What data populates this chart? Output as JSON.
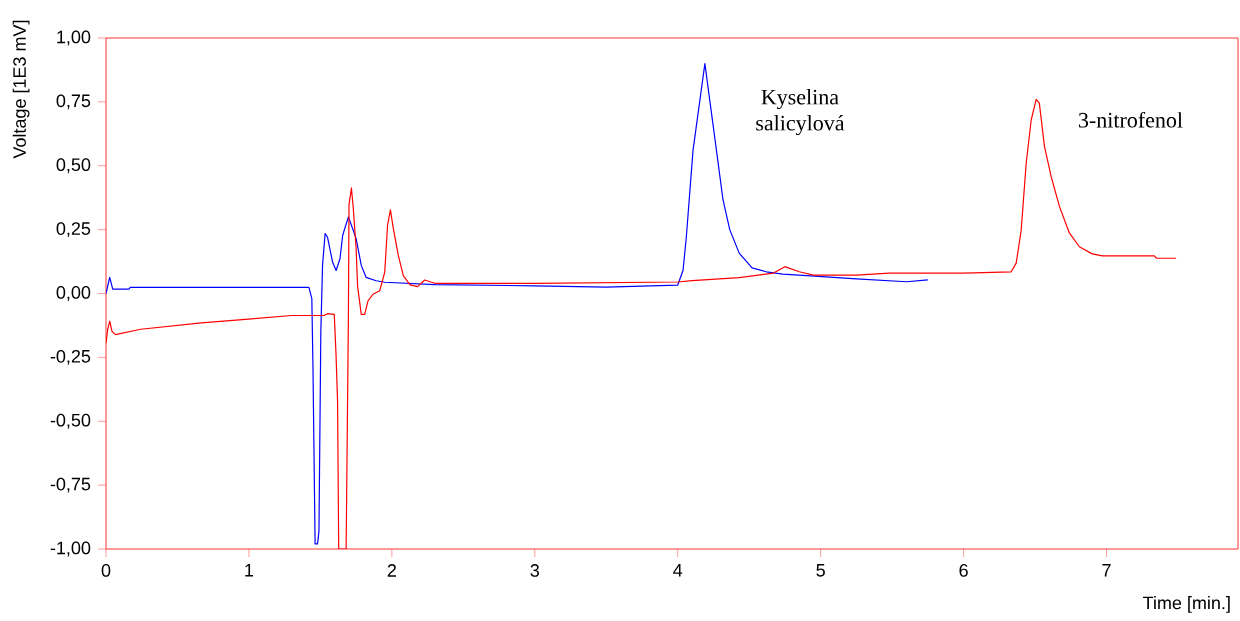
{
  "chart_data": {
    "type": "line",
    "xlabel": "Time [min.]",
    "ylabel": "Voltage  [1E3  mV]",
    "xlim": [
      0,
      7.92
    ],
    "ylim": [
      -1,
      1
    ],
    "xticks": [
      0,
      1,
      2,
      3,
      4,
      5,
      6,
      7
    ],
    "yticks": [
      {
        "value": -1,
        "label": "-1,00"
      },
      {
        "value": -0.75,
        "label": "-0,75"
      },
      {
        "value": -0.5,
        "label": "-0,50"
      },
      {
        "value": -0.25,
        "label": "-0,25"
      },
      {
        "value": 0,
        "label": "0,00"
      },
      {
        "value": 0.25,
        "label": "0,25"
      },
      {
        "value": 0.5,
        "label": "0,50"
      },
      {
        "value": 0.75,
        "label": "0,75"
      },
      {
        "value": 1,
        "label": "1,00"
      }
    ],
    "grid": false,
    "line_style": "solid",
    "marker": "none",
    "annotations": [
      "Kyselina salicylová",
      "3-nitrofenol"
    ],
    "series": [
      {
        "color": "#0000ff",
        "x": [
          0,
          0.026,
          0.047,
          0.16,
          0.17,
          1.42,
          1.44,
          1.448,
          1.463,
          1.48,
          1.49,
          1.503,
          1.515,
          1.533,
          1.55,
          1.585,
          1.61,
          1.637,
          1.656,
          1.696,
          1.75,
          1.786,
          1.82,
          1.89,
          1.95,
          2.3,
          3.0,
          3.5,
          4.0,
          4.037,
          4.06,
          4.107,
          4.19,
          4.224,
          4.271,
          4.317,
          4.364,
          4.43,
          4.52,
          4.62,
          4.735,
          5.01,
          5.25,
          5.6,
          5.75
        ],
        "values": [
          0.0,
          0.063,
          0.017,
          0.017,
          0.024,
          0.024,
          -0.02,
          -0.29,
          -0.98,
          -0.98,
          -0.93,
          -0.15,
          0.11,
          0.235,
          0.22,
          0.123,
          0.09,
          0.136,
          0.228,
          0.3,
          0.215,
          0.11,
          0.063,
          0.05,
          0.044,
          0.035,
          0.03,
          0.025,
          0.033,
          0.09,
          0.22,
          0.56,
          0.9,
          0.757,
          0.56,
          0.366,
          0.25,
          0.158,
          0.1,
          0.085,
          0.076,
          0.066,
          0.057,
          0.046,
          0.053
        ]
      },
      {
        "color": "#ff0000",
        "x": [
          0,
          0.012,
          0.026,
          0.042,
          0.066,
          0.243,
          0.667,
          1.02,
          1.3,
          1.527,
          1.55,
          1.597,
          1.609,
          1.62,
          1.628,
          1.68,
          1.696,
          1.7,
          1.717,
          1.73,
          1.75,
          1.76,
          1.786,
          1.81,
          1.833,
          1.868,
          1.915,
          1.95,
          1.97,
          1.99,
          2.01,
          2.045,
          2.08,
          2.127,
          2.18,
          2.23,
          2.3,
          3.0,
          4.0,
          4.1,
          4.43,
          4.67,
          4.75,
          4.85,
          4.95,
          5.25,
          5.48,
          6.0,
          6.333,
          6.368,
          6.403,
          6.438,
          6.473,
          6.508,
          6.53,
          6.566,
          6.613,
          6.671,
          6.74,
          6.81,
          6.9,
          6.97,
          7.335,
          7.35,
          7.487
        ],
        "values": [
          -0.194,
          -0.14,
          -0.108,
          -0.148,
          -0.161,
          -0.14,
          -0.115,
          -0.099,
          -0.086,
          -0.086,
          -0.079,
          -0.082,
          -0.234,
          -0.42,
          -1.0,
          -1.0,
          -0.088,
          0.347,
          0.413,
          0.334,
          0.176,
          0.03,
          -0.082,
          -0.082,
          -0.029,
          -0.003,
          0.011,
          0.083,
          0.268,
          0.327,
          0.255,
          0.149,
          0.07,
          0.034,
          0.027,
          0.053,
          0.04,
          0.04,
          0.045,
          0.05,
          0.062,
          0.08,
          0.105,
          0.085,
          0.072,
          0.072,
          0.08,
          0.08,
          0.085,
          0.119,
          0.248,
          0.51,
          0.679,
          0.76,
          0.745,
          0.575,
          0.457,
          0.34,
          0.237,
          0.183,
          0.155,
          0.147,
          0.147,
          0.138,
          0.138
        ]
      }
    ]
  }
}
